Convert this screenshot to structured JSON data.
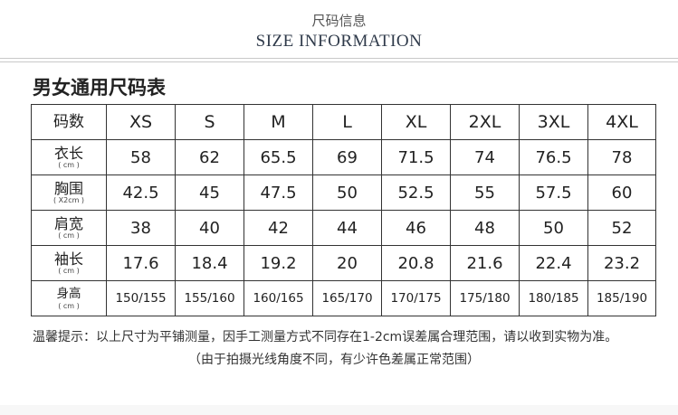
{
  "header": {
    "title_cn": "尺码信息",
    "title_en": "SIZE INFORMATION"
  },
  "table_title": "男女通用尺码表",
  "size_table": {
    "corner_label": "码数",
    "sizes": [
      "XS",
      "S",
      "M",
      "L",
      "XL",
      "2XL",
      "3XL",
      "4XL"
    ],
    "rows": [
      {
        "label": "衣长",
        "unit": "( cm )",
        "values": [
          "58",
          "62",
          "65.5",
          "69",
          "71.5",
          "74",
          "76.5",
          "78"
        ]
      },
      {
        "label": "胸围",
        "unit": "( X2cm )",
        "values": [
          "42.5",
          "45",
          "47.5",
          "50",
          "52.5",
          "55",
          "57.5",
          "60"
        ]
      },
      {
        "label": "肩宽",
        "unit": "( cm )",
        "values": [
          "38",
          "40",
          "42",
          "44",
          "46",
          "48",
          "50",
          "52"
        ]
      },
      {
        "label": "袖长",
        "unit": "( cm )",
        "values": [
          "17.6",
          "18.4",
          "19.2",
          "20",
          "20.8",
          "21.6",
          "22.4",
          "23.2"
        ]
      },
      {
        "label": "身高",
        "unit": "( cm )",
        "values": [
          "150/155",
          "155/160",
          "160/165",
          "165/170",
          "170/175",
          "175/180",
          "180/185",
          "185/190"
        ]
      }
    ]
  },
  "notes": {
    "line1": "温馨提示：以上尺寸为平铺测量，因手工测量方式不同存在1-2cm误差属合理范围，请以收到实物为准。",
    "line2": "（由于拍摄光线角度不同，有少许色差属正常范围）"
  }
}
